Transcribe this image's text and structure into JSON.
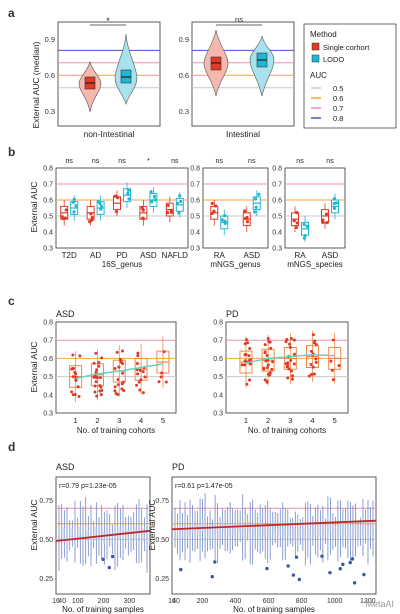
{
  "figure": {
    "watermark": "MetaAI",
    "panel_letters": [
      "a",
      "b",
      "c",
      "d"
    ]
  },
  "colors": {
    "single": "#e03a26",
    "lodo": "#1fb7d4",
    "auc_05": "#c8c8c8",
    "auc_06": "#f4a63a",
    "auc_07": "#ef8fb6",
    "auc_08": "#4a52c9",
    "d_box": "#6f87c7",
    "d_line": "#c0272d"
  },
  "legend": {
    "method_title": "Method",
    "method_items": [
      "Single corhort",
      "LODO"
    ],
    "auc_title": "AUC",
    "auc_items": [
      "0.5",
      "0.6",
      "0.7",
      "0.8"
    ]
  },
  "chart_data": [
    {
      "panel": "a",
      "type": "violin",
      "ylabel": "External AUC (median)",
      "ylim": [
        0.4,
        1.0
      ],
      "yticks": [
        "0.9",
        "0.6",
        "0.3"
      ],
      "ref_lines": [
        0.5,
        0.6,
        0.7,
        0.8
      ],
      "facets": [
        {
          "name": "non-Intestinal",
          "significance": "*",
          "single_median": 0.52,
          "lodo_median": 0.55
        },
        {
          "name": "Intestinal",
          "significance": "ns",
          "single_median": 0.71,
          "lodo_median": 0.74
        }
      ]
    },
    {
      "panel": "b",
      "type": "box",
      "ylabel": "External AUC",
      "ylim": [
        0.3,
        0.8
      ],
      "yticks": [
        "0.8",
        "0.7",
        "0.6",
        "0.5",
        "0.4",
        "0.3"
      ],
      "facets": [
        {
          "name": "16S_genus",
          "categories": [
            "T2D",
            "AD",
            "PD",
            "ASD",
            "NAFLD"
          ],
          "significance": [
            "ns",
            "ns",
            "ns",
            "*",
            "ns"
          ],
          "single_medians": [
            0.52,
            0.52,
            0.58,
            0.52,
            0.54
          ],
          "lodo_medians": [
            0.55,
            0.55,
            0.63,
            0.6,
            0.57
          ]
        },
        {
          "name": "mNGS_genus",
          "categories": [
            "RA",
            "ASD"
          ],
          "significance": [
            "ns",
            "ns"
          ],
          "single_medians": [
            0.52,
            0.48
          ],
          "lodo_medians": [
            0.46,
            0.58
          ]
        },
        {
          "name": "mNGS_species",
          "categories": [
            "RA",
            "ASD"
          ],
          "significance": [
            "ns",
            "ns"
          ],
          "single_medians": [
            0.48,
            0.5
          ],
          "lodo_medians": [
            0.42,
            0.56
          ]
        }
      ]
    },
    {
      "panel": "c",
      "type": "box",
      "ylabel": "External AUC",
      "xlabel": "No. of training cohorts",
      "ylim": [
        0.3,
        0.8
      ],
      "yticks": [
        "0.8",
        "0.7",
        "0.6",
        "0.5",
        "0.4",
        "0.3"
      ],
      "facets": [
        {
          "name": "ASD",
          "x": [
            "1",
            "2",
            "3",
            "4",
            "5"
          ],
          "medians": [
            0.5,
            0.51,
            0.53,
            0.54,
            0.58
          ],
          "smooth": [
            0.49,
            0.515,
            0.53,
            0.55,
            0.57
          ]
        },
        {
          "name": "PD",
          "x": [
            "1",
            "2",
            "3",
            "4",
            "5"
          ],
          "medians": [
            0.58,
            0.59,
            0.6,
            0.61,
            0.6
          ],
          "smooth": [
            0.575,
            0.6,
            0.61,
            0.62,
            0.615
          ]
        }
      ]
    },
    {
      "panel": "d",
      "type": "box",
      "ylabel": "External AUC",
      "xlabel": "No. of training samples",
      "ylim": [
        0.15,
        0.9
      ],
      "yticks": [
        "0.75",
        "0.50",
        "0.25"
      ],
      "facets": [
        {
          "name": "ASD",
          "stat": "r=0.79  p=1.23e-05",
          "xticks": [
            "16",
            "40",
            "100",
            "200",
            "300"
          ],
          "xlim": [
            16,
            380
          ],
          "fit": [
            [
              16,
              0.49
            ],
            [
              380,
              0.555
            ]
          ]
        },
        {
          "name": "PD",
          "stat": "r=0.61  p=1.47e-05",
          "xticks": [
            "16",
            "40",
            "200",
            "400",
            "600",
            "800",
            "1000",
            "1200"
          ],
          "xlim": [
            16,
            1250
          ],
          "fit": [
            [
              16,
              0.565
            ],
            [
              1250,
              0.62
            ]
          ]
        }
      ]
    }
  ]
}
